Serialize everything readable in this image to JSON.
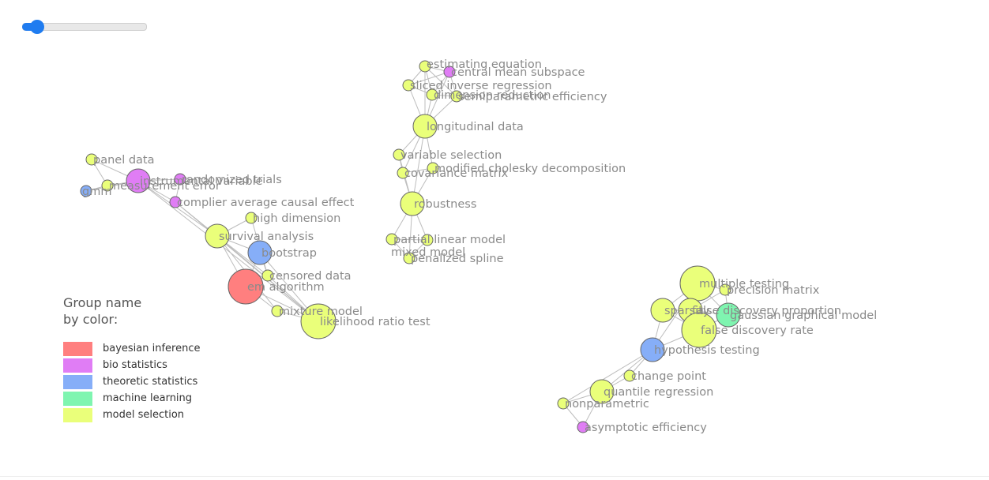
{
  "slider": {
    "value": 0.07
  },
  "legend": {
    "title": "Group name\nby color:",
    "groups": [
      {
        "label": "bayesian inference",
        "color": "#ff7f7f"
      },
      {
        "label": "bio statistics",
        "color": "#e07df5"
      },
      {
        "label": "theoretic statistics",
        "color": "#86aef8"
      },
      {
        "label": "machine learning",
        "color": "#7ff5b0"
      },
      {
        "label": "model selection",
        "color": "#eaff7a"
      }
    ]
  },
  "edge_color": "#bdbdbd",
  "node_border": "#666666",
  "nodes": [
    {
      "id": "estimating equation",
      "label": "estimating equation",
      "group": "model selection"
    },
    {
      "id": "central mean subspace",
      "label": "central mean subspace",
      "group": "bio statistics"
    },
    {
      "id": "sliced inverse regression",
      "label": "sliced inverse regression",
      "group": "model selection"
    },
    {
      "id": "dimension reduction",
      "label": "dimension reduction",
      "group": "model selection"
    },
    {
      "id": "semiparametric efficiency",
      "label": "semiparametric efficiency",
      "group": "model selection"
    },
    {
      "id": "longitudinal data",
      "label": "longitudinal data",
      "group": "model selection"
    },
    {
      "id": "variable selection",
      "label": "variable selection",
      "group": "model selection"
    },
    {
      "id": "covariance matrix",
      "label": "covariance matrix",
      "group": "model selection"
    },
    {
      "id": "modified cholesky decomposition",
      "label": "modified cholesky decomposition",
      "group": "model selection"
    },
    {
      "id": "robustness",
      "label": "robustness",
      "group": "model selection"
    },
    {
      "id": "partial linear model",
      "label": "partial linear model",
      "group": "model selection"
    },
    {
      "id": "mixed model",
      "label": "mixed model",
      "group": "model selection"
    },
    {
      "id": "penalized spline",
      "label": "penalized spline",
      "group": "model selection"
    },
    {
      "id": "panel data",
      "label": "panel data",
      "group": "model selection"
    },
    {
      "id": "gmm",
      "label": "gmm",
      "group": "theoretic statistics"
    },
    {
      "id": "measurement error",
      "label": "measurement error",
      "group": "model selection"
    },
    {
      "id": "instrumental variable",
      "label": "instrumental variable",
      "group": "bio statistics"
    },
    {
      "id": "randomized trials",
      "label": "randomized trials",
      "group": "bio statistics"
    },
    {
      "id": "complier average causal effect",
      "label": "complier average causal effect",
      "group": "bio statistics"
    },
    {
      "id": "high dimension",
      "label": "high dimension",
      "group": "model selection"
    },
    {
      "id": "survival analysis",
      "label": "survival analysis",
      "group": "model selection"
    },
    {
      "id": "bootstrap",
      "label": "bootstrap",
      "group": "theoretic statistics"
    },
    {
      "id": "censored data",
      "label": "censored data",
      "group": "model selection"
    },
    {
      "id": "em algorithm",
      "label": "em algorithm",
      "group": "bayesian inference"
    },
    {
      "id": "mixture model",
      "label": "mixture model",
      "group": "model selection"
    },
    {
      "id": "likelihood ratio test",
      "label": "likelihood ratio test",
      "group": "model selection"
    },
    {
      "id": "multiple testing",
      "label": "multiple testing",
      "group": "model selection"
    },
    {
      "id": "precision matrix",
      "label": "precision matrix",
      "group": "model selection"
    },
    {
      "id": "sparsity",
      "label": "sparsity",
      "group": "model selection"
    },
    {
      "id": "false discovery proportion",
      "label": "false discovery proportion",
      "group": "model selection"
    },
    {
      "id": "gaussian graphical model",
      "label": "gaussian graphical model",
      "group": "machine learning"
    },
    {
      "id": "false discovery rate",
      "label": "false discovery rate",
      "group": "model selection"
    },
    {
      "id": "hypothesis testing",
      "label": "hypothesis testing",
      "group": "theoretic statistics"
    },
    {
      "id": "change point",
      "label": "change point",
      "group": "model selection"
    },
    {
      "id": "quantile regression",
      "label": "quantile regression",
      "group": "model selection"
    },
    {
      "id": "nonparametric",
      "label": "nonparametric",
      "group": "model selection"
    },
    {
      "id": "asymptotic efficiency",
      "label": "asymptotic efficiency",
      "group": "bio statistics"
    }
  ],
  "edges": [
    [
      "estimating equation",
      "central mean subspace"
    ],
    [
      "estimating equation",
      "sliced inverse regression"
    ],
    [
      "estimating equation",
      "dimension reduction"
    ],
    [
      "estimating equation",
      "semiparametric efficiency"
    ],
    [
      "estimating equation",
      "longitudinal data"
    ],
    [
      "central mean subspace",
      "sliced inverse regression"
    ],
    [
      "central mean subspace",
      "dimension reduction"
    ],
    [
      "central mean subspace",
      "semiparametric efficiency"
    ],
    [
      "central mean subspace",
      "longitudinal data"
    ],
    [
      "sliced inverse regression",
      "dimension reduction"
    ],
    [
      "sliced inverse regression",
      "longitudinal data"
    ],
    [
      "dimension reduction",
      "semiparametric efficiency"
    ],
    [
      "dimension reduction",
      "longitudinal data"
    ],
    [
      "semiparametric efficiency",
      "longitudinal data"
    ],
    [
      "longitudinal data",
      "variable selection"
    ],
    [
      "longitudinal data",
      "covariance matrix"
    ],
    [
      "longitudinal data",
      "modified cholesky decomposition"
    ],
    [
      "longitudinal data",
      "robustness"
    ],
    [
      "variable selection",
      "covariance matrix"
    ],
    [
      "variable selection",
      "robustness"
    ],
    [
      "covariance matrix",
      "modified cholesky decomposition"
    ],
    [
      "covariance matrix",
      "robustness"
    ],
    [
      "modified cholesky decomposition",
      "robustness"
    ],
    [
      "robustness",
      "partial linear model"
    ],
    [
      "robustness",
      "mixed model"
    ],
    [
      "robustness",
      "penalized spline"
    ],
    [
      "partial linear model",
      "mixed model"
    ],
    [
      "partial linear model",
      "penalized spline"
    ],
    [
      "mixed model",
      "penalized spline"
    ],
    [
      "panel data",
      "instrumental variable"
    ],
    [
      "panel data",
      "measurement error"
    ],
    [
      "gmm",
      "measurement error"
    ],
    [
      "gmm",
      "instrumental variable"
    ],
    [
      "measurement error",
      "instrumental variable"
    ],
    [
      "instrumental variable",
      "randomized trials"
    ],
    [
      "instrumental variable",
      "complier average causal effect"
    ],
    [
      "instrumental variable",
      "survival analysis"
    ],
    [
      "randomized trials",
      "complier average causal effect"
    ],
    [
      "complier average causal effect",
      "survival analysis"
    ],
    [
      "instrumental variable",
      "likelihood ratio test"
    ],
    [
      "complier average causal effect",
      "likelihood ratio test"
    ],
    [
      "high dimension",
      "survival analysis"
    ],
    [
      "high dimension",
      "censored data"
    ],
    [
      "survival analysis",
      "bootstrap"
    ],
    [
      "survival analysis",
      "em algorithm"
    ],
    [
      "survival analysis",
      "censored data"
    ],
    [
      "survival analysis",
      "likelihood ratio test"
    ],
    [
      "survival analysis",
      "mixture model"
    ],
    [
      "bootstrap",
      "em algorithm"
    ],
    [
      "bootstrap",
      "censored data"
    ],
    [
      "bootstrap",
      "likelihood ratio test"
    ],
    [
      "em algorithm",
      "censored data"
    ],
    [
      "em algorithm",
      "mixture model"
    ],
    [
      "em algorithm",
      "likelihood ratio test"
    ],
    [
      "censored data",
      "likelihood ratio test"
    ],
    [
      "mixture model",
      "likelihood ratio test"
    ],
    [
      "multiple testing",
      "precision matrix"
    ],
    [
      "multiple testing",
      "sparsity"
    ],
    [
      "multiple testing",
      "false discovery proportion"
    ],
    [
      "multiple testing",
      "gaussian graphical model"
    ],
    [
      "multiple testing",
      "false discovery rate"
    ],
    [
      "multiple testing",
      "hypothesis testing"
    ],
    [
      "precision matrix",
      "gaussian graphical model"
    ],
    [
      "precision matrix",
      "false discovery proportion"
    ],
    [
      "sparsity",
      "false discovery proportion"
    ],
    [
      "sparsity",
      "false discovery rate"
    ],
    [
      "sparsity",
      "hypothesis testing"
    ],
    [
      "false discovery proportion",
      "gaussian graphical model"
    ],
    [
      "false discovery proportion",
      "false discovery rate"
    ],
    [
      "gaussian graphical model",
      "false discovery rate"
    ],
    [
      "false discovery rate",
      "hypothesis testing"
    ],
    [
      "hypothesis testing",
      "change point"
    ],
    [
      "hypothesis testing",
      "quantile regression"
    ],
    [
      "hypothesis testing",
      "nonparametric"
    ],
    [
      "change point",
      "quantile regression"
    ],
    [
      "quantile regression",
      "nonparametric"
    ],
    [
      "quantile regression",
      "asymptotic efficiency"
    ],
    [
      "nonparametric",
      "asymptotic efficiency"
    ]
  ]
}
